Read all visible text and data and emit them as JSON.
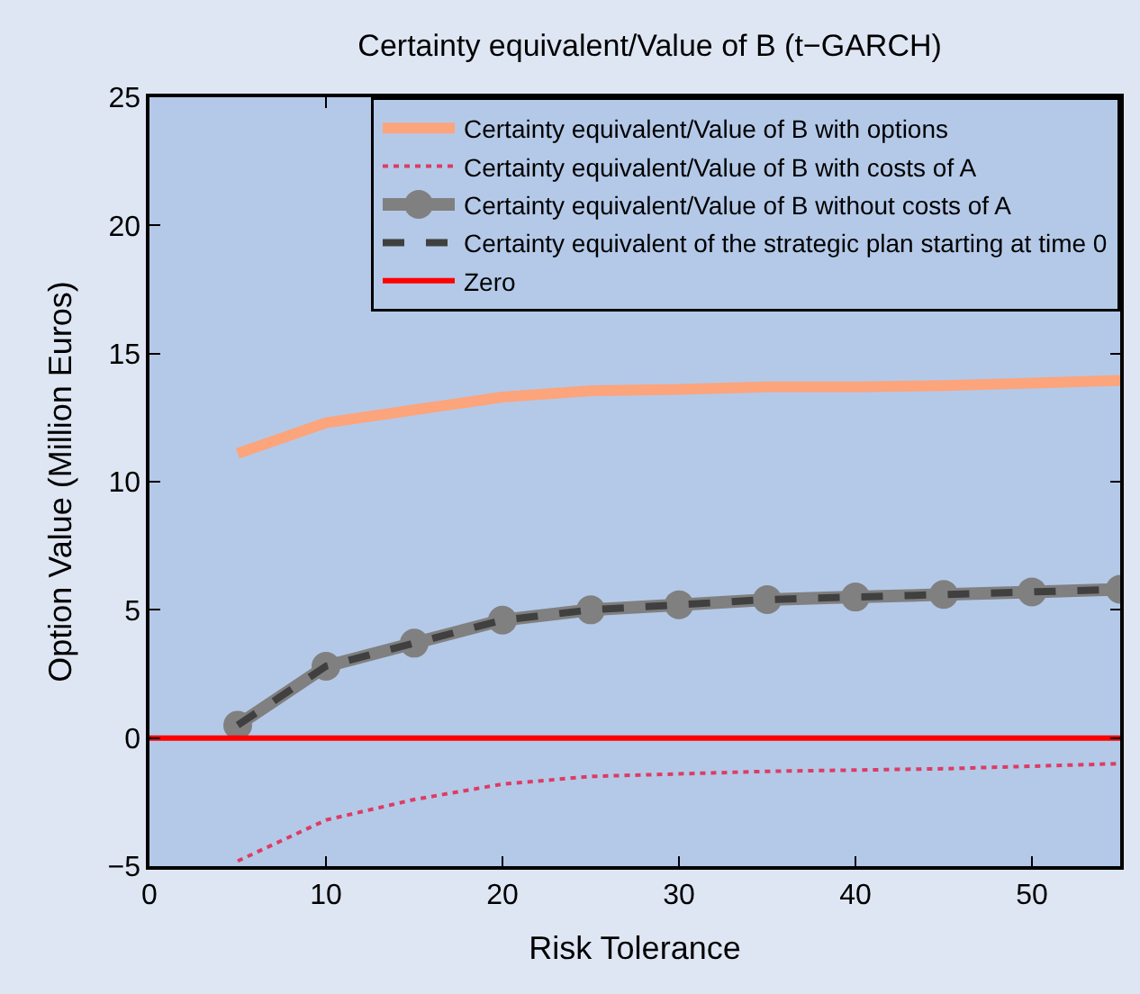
{
  "chart_data": {
    "type": "line",
    "title": "Certainty equivalent/Value of B (t−GARCH)",
    "xlabel": "Risk Tolerance",
    "ylabel": "Option Value (Million Euros)",
    "x": [
      5,
      10,
      15,
      20,
      25,
      30,
      35,
      40,
      45,
      50,
      55
    ],
    "series": [
      {
        "name": "Certainty equivalent/Value of B with options",
        "color": "#fca47c",
        "line_style": "solid",
        "marker": "none",
        "values": [
          11.1,
          12.3,
          12.8,
          13.3,
          13.55,
          13.6,
          13.7,
          13.7,
          13.75,
          13.85,
          13.95
        ]
      },
      {
        "name": "Certainty equivalent/Value of B with costs of A",
        "color": "#dc3c64",
        "line_style": "dotted",
        "marker": "none",
        "values": [
          -4.8,
          -3.2,
          -2.4,
          -1.8,
          -1.5,
          -1.4,
          -1.3,
          -1.25,
          -1.2,
          -1.1,
          -1.0
        ]
      },
      {
        "name": "Certainty equivalent/Value of B without costs of A",
        "color": "#808080",
        "line_style": "solid",
        "marker": "circle",
        "values": [
          0.5,
          2.8,
          3.7,
          4.6,
          5.0,
          5.2,
          5.4,
          5.5,
          5.6,
          5.7,
          5.8
        ]
      },
      {
        "name": "Certainty equivalent of the strategic plan starting at time 0",
        "color": "#404040",
        "line_style": "dashed",
        "marker": "none",
        "values": [
          0.5,
          2.8,
          3.7,
          4.6,
          5.0,
          5.2,
          5.4,
          5.5,
          5.6,
          5.7,
          5.8
        ]
      },
      {
        "name": "Zero",
        "color": "#ff0000",
        "line_style": "solid",
        "marker": "none",
        "x": [
          0,
          55
        ],
        "values": [
          0,
          0
        ]
      }
    ],
    "xlim": [
      0,
      55
    ],
    "xticks": [
      0,
      10,
      20,
      30,
      40,
      50
    ],
    "ylim": [
      -5,
      25
    ],
    "yticks": [
      -5,
      0,
      5,
      10,
      15,
      20,
      25
    ],
    "grid": false,
    "legend": "top right"
  }
}
